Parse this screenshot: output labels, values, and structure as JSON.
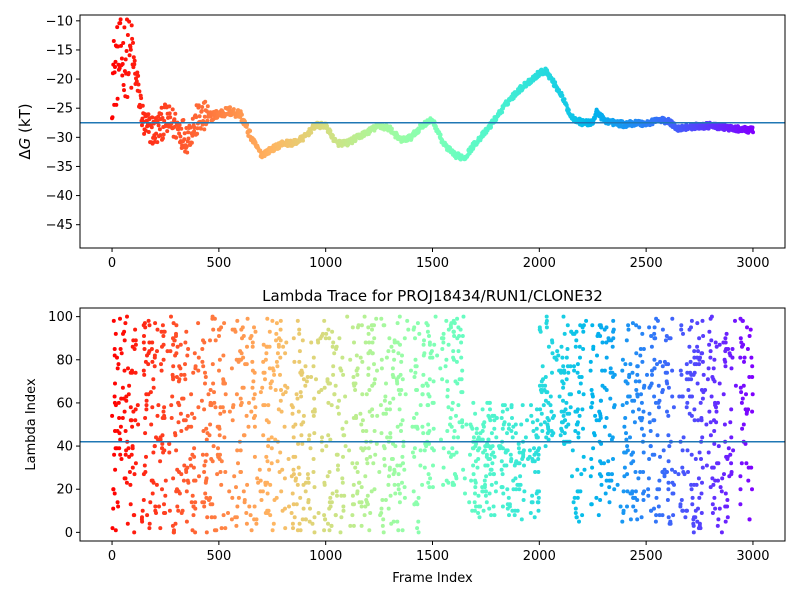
{
  "chart_data": [
    {
      "type": "scatter",
      "title": "",
      "xlabel": "",
      "ylabel_prefix": "Δ",
      "ylabel_italic": "G",
      "ylabel_suffix": " (kT)",
      "xlim": [
        -150,
        3150
      ],
      "ylim": [
        -49,
        -9
      ],
      "xticks": [
        0,
        500,
        1000,
        1500,
        2000,
        2500,
        3000
      ],
      "yticks": [
        -45,
        -40,
        -35,
        -30,
        -25,
        -20,
        -15,
        -10
      ],
      "hline": -27.5,
      "hline_color": "#1f77b4",
      "colormap": "rainbow (red at frame 0 to violet at frame 3000)",
      "grid": false,
      "trace_knots": [
        [
          0,
          -20
        ],
        [
          30,
          -17
        ],
        [
          60,
          -16
        ],
        [
          100,
          -17
        ],
        [
          150,
          -28
        ],
        [
          200,
          -29
        ],
        [
          250,
          -27
        ],
        [
          300,
          -28
        ],
        [
          350,
          -30
        ],
        [
          400,
          -27
        ],
        [
          450,
          -26.5
        ],
        [
          500,
          -26
        ],
        [
          550,
          -25.5
        ],
        [
          600,
          -26
        ],
        [
          650,
          -30
        ],
        [
          700,
          -33
        ],
        [
          750,
          -32
        ],
        [
          800,
          -31
        ],
        [
          850,
          -31
        ],
        [
          900,
          -30
        ],
        [
          950,
          -28
        ],
        [
          1000,
          -28
        ],
        [
          1050,
          -31
        ],
        [
          1100,
          -31
        ],
        [
          1150,
          -30
        ],
        [
          1200,
          -29
        ],
        [
          1250,
          -28
        ],
        [
          1300,
          -28.5
        ],
        [
          1350,
          -30.5
        ],
        [
          1400,
          -30
        ],
        [
          1450,
          -28
        ],
        [
          1500,
          -27
        ],
        [
          1550,
          -31
        ],
        [
          1600,
          -33
        ],
        [
          1650,
          -33.5
        ],
        [
          1700,
          -31
        ],
        [
          1750,
          -29
        ],
        [
          1800,
          -26.5
        ],
        [
          1850,
          -24
        ],
        [
          1900,
          -22
        ],
        [
          1950,
          -20.5
        ],
        [
          2000,
          -19
        ],
        [
          2030,
          -18.5
        ],
        [
          2100,
          -22.5
        ],
        [
          2150,
          -26.5
        ],
        [
          2200,
          -27.5
        ],
        [
          2250,
          -27.5
        ],
        [
          2270,
          -25.5
        ],
        [
          2300,
          -27
        ],
        [
          2350,
          -27.5
        ],
        [
          2400,
          -27.8
        ],
        [
          2450,
          -27.5
        ],
        [
          2500,
          -27.7
        ],
        [
          2550,
          -27
        ],
        [
          2600,
          -27.2
        ],
        [
          2650,
          -28.5
        ],
        [
          2700,
          -28.2
        ],
        [
          2800,
          -28
        ],
        [
          2900,
          -28.5
        ],
        [
          3000,
          -28.8
        ]
      ]
    },
    {
      "type": "scatter",
      "title": "Lambda Trace for PROJ18434/RUN1/CLONE32",
      "xlabel": "Frame Index",
      "ylabel": "Lambda Index",
      "xlim": [
        -150,
        3150
      ],
      "ylim": [
        -4,
        104
      ],
      "xticks": [
        0,
        500,
        1000,
        1500,
        2000,
        2500,
        3000
      ],
      "yticks": [
        0,
        20,
        40,
        60,
        80,
        100
      ],
      "hline": 42,
      "hline_color": "#1f77b4",
      "colormap": "rainbow (red at frame 0 to violet at frame 3000)",
      "grid": false,
      "lambda_bands": [
        {
          "x": [
            0,
            100
          ],
          "y": [
            0,
            100
          ]
        },
        {
          "x": [
            100,
            650
          ],
          "y": [
            0,
            100
          ]
        },
        {
          "x": [
            650,
            1050
          ],
          "y": [
            0,
            100
          ]
        },
        {
          "x": [
            1050,
            1450
          ],
          "y": [
            0,
            100
          ]
        },
        {
          "x": [
            1450,
            1650
          ],
          "y": [
            20,
            100
          ]
        },
        {
          "x": [
            1650,
            2000
          ],
          "y": [
            5,
            60
          ]
        },
        {
          "x": [
            2000,
            2150
          ],
          "y": [
            40,
            100
          ]
        },
        {
          "x": [
            2150,
            2600
          ],
          "y": [
            5,
            100
          ]
        },
        {
          "x": [
            2600,
            3000
          ],
          "y": [
            0,
            100
          ]
        }
      ]
    }
  ]
}
